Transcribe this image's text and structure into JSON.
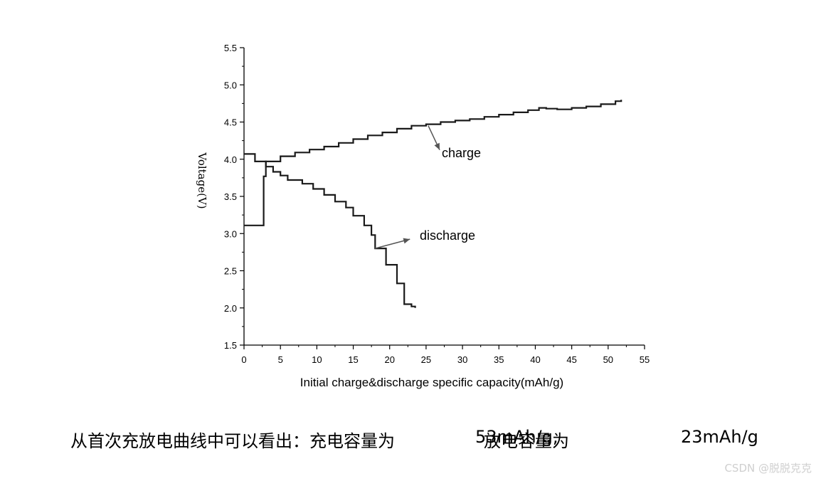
{
  "chart_data": {
    "type": "line",
    "title": "",
    "xlabel": "Initial charge&discharge specific capacity(mAh/g)",
    "ylabel": "Voltage(V)",
    "xlim": [
      0,
      55
    ],
    "ylim": [
      1.5,
      5.5
    ],
    "x_ticks": [
      0,
      5,
      10,
      15,
      20,
      25,
      30,
      35,
      40,
      45,
      50,
      55
    ],
    "y_ticks": [
      "1.5",
      "2.0",
      "2.5",
      "3.0",
      "3.5",
      "4.0",
      "4.5",
      "5.0",
      "5.5"
    ],
    "series": [
      {
        "name": "charge",
        "x": [
          0,
          1.5,
          2.7,
          3,
          5,
          7,
          9,
          11,
          13,
          15,
          17,
          19,
          21,
          23,
          25,
          27,
          29,
          31,
          33,
          35,
          37,
          39,
          40.5,
          41.5,
          43,
          45,
          47,
          49,
          51,
          51.8
        ],
        "y": [
          3.11,
          3.11,
          3.77,
          3.97,
          4.04,
          4.09,
          4.13,
          4.17,
          4.22,
          4.27,
          4.32,
          4.36,
          4.41,
          4.45,
          4.47,
          4.5,
          4.52,
          4.54,
          4.57,
          4.6,
          4.63,
          4.66,
          4.69,
          4.68,
          4.67,
          4.69,
          4.71,
          4.74,
          4.78,
          4.8
        ]
      },
      {
        "name": "discharge",
        "x": [
          0,
          1,
          1.5,
          2.5,
          3,
          4,
          5,
          6,
          8,
          9.5,
          11,
          12.5,
          14,
          15,
          16.5,
          17.5,
          18,
          19.5,
          21,
          22,
          23,
          23.5
        ],
        "y": [
          4.07,
          4.07,
          3.97,
          3.97,
          3.9,
          3.83,
          3.78,
          3.72,
          3.67,
          3.6,
          3.52,
          3.43,
          3.35,
          3.24,
          3.11,
          2.98,
          2.8,
          2.58,
          2.33,
          2.05,
          2.02,
          2.0
        ]
      }
    ],
    "annotations": [
      {
        "text": "charge",
        "target": [
          25.3,
          4.47
        ]
      },
      {
        "text": "discharge",
        "target": [
          18,
          2.8
        ]
      }
    ]
  },
  "caption": {
    "text_1": "从首次充放电曲线中可以看出：充电容量为",
    "value_1": "53mAh/g,",
    "text_2": "放电容量为",
    "value_2": "23mAh/g"
  },
  "watermark": "CSDN @脱脱克克",
  "colors": {
    "line": "#1a1a1a",
    "axis": "#000000",
    "watermark": "#cfcfcf"
  }
}
